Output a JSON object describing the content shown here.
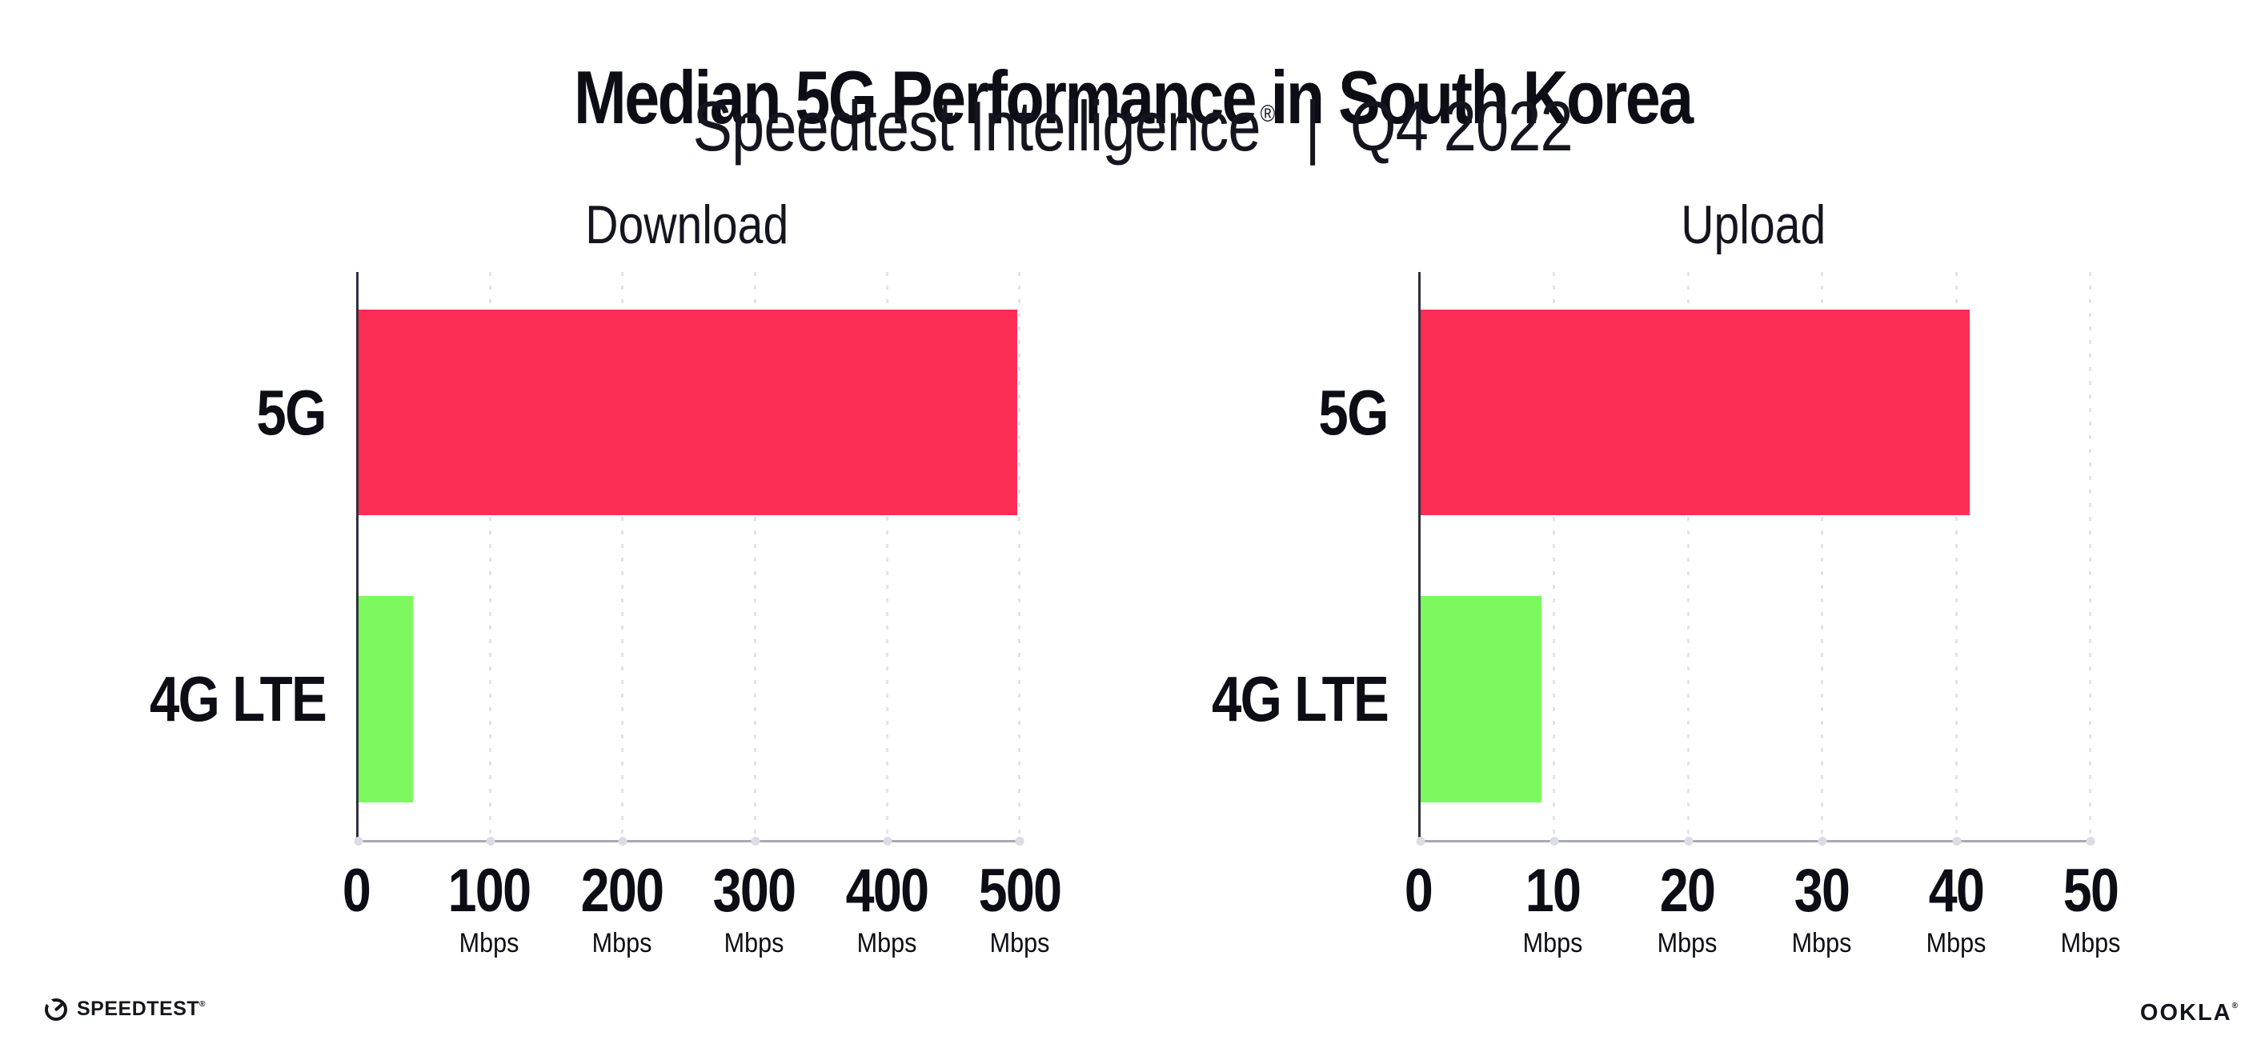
{
  "header": {
    "title": "Median 5G Performance in South Korea",
    "subtitle_brand": "Speedtest Intelligence",
    "subtitle_reg": "®",
    "subtitle_sep": "|",
    "subtitle_period": "Q4 2022"
  },
  "colors": {
    "bar_5g": "#FE2D55",
    "bar_4g_lte": "#7CF95F",
    "grid_dots": "#E3E3EB",
    "baseline": "#A9A9B1",
    "y_axis": "#30303C",
    "text": "#0D0D16"
  },
  "chart_data": [
    {
      "type": "bar",
      "orientation": "horizontal",
      "title": "Download",
      "categories": [
        "5G",
        "4G LTE"
      ],
      "values": [
        498,
        41
      ],
      "unit": "Mbps",
      "xlim": [
        0,
        500
      ],
      "grid": "vertical-dotted",
      "legend": "none",
      "bar_colors": [
        "#FE2D55",
        "#7CF95F"
      ],
      "xticks": [
        {
          "label": "0",
          "unit": ""
        },
        {
          "label": "100",
          "unit": "Mbps"
        },
        {
          "label": "200",
          "unit": "Mbps"
        },
        {
          "label": "300",
          "unit": "Mbps"
        },
        {
          "label": "400",
          "unit": "Mbps"
        },
        {
          "label": "500",
          "unit": "Mbps"
        }
      ]
    },
    {
      "type": "bar",
      "orientation": "horizontal",
      "title": "Upload",
      "categories": [
        "5G",
        "4G LTE"
      ],
      "values": [
        41,
        9
      ],
      "unit": "Mbps",
      "xlim": [
        0,
        50
      ],
      "grid": "vertical-dotted",
      "legend": "none",
      "bar_colors": [
        "#FE2D55",
        "#7CF95F"
      ],
      "xticks": [
        {
          "label": "0",
          "unit": ""
        },
        {
          "label": "10",
          "unit": "Mbps"
        },
        {
          "label": "20",
          "unit": "Mbps"
        },
        {
          "label": "30",
          "unit": "Mbps"
        },
        {
          "label": "40",
          "unit": "Mbps"
        },
        {
          "label": "50",
          "unit": "Mbps"
        }
      ]
    }
  ],
  "footer": {
    "speedtest_label": "SPEEDTEST",
    "speedtest_mark": "®",
    "ookla_label": "OOKLA",
    "ookla_mark": "®"
  }
}
